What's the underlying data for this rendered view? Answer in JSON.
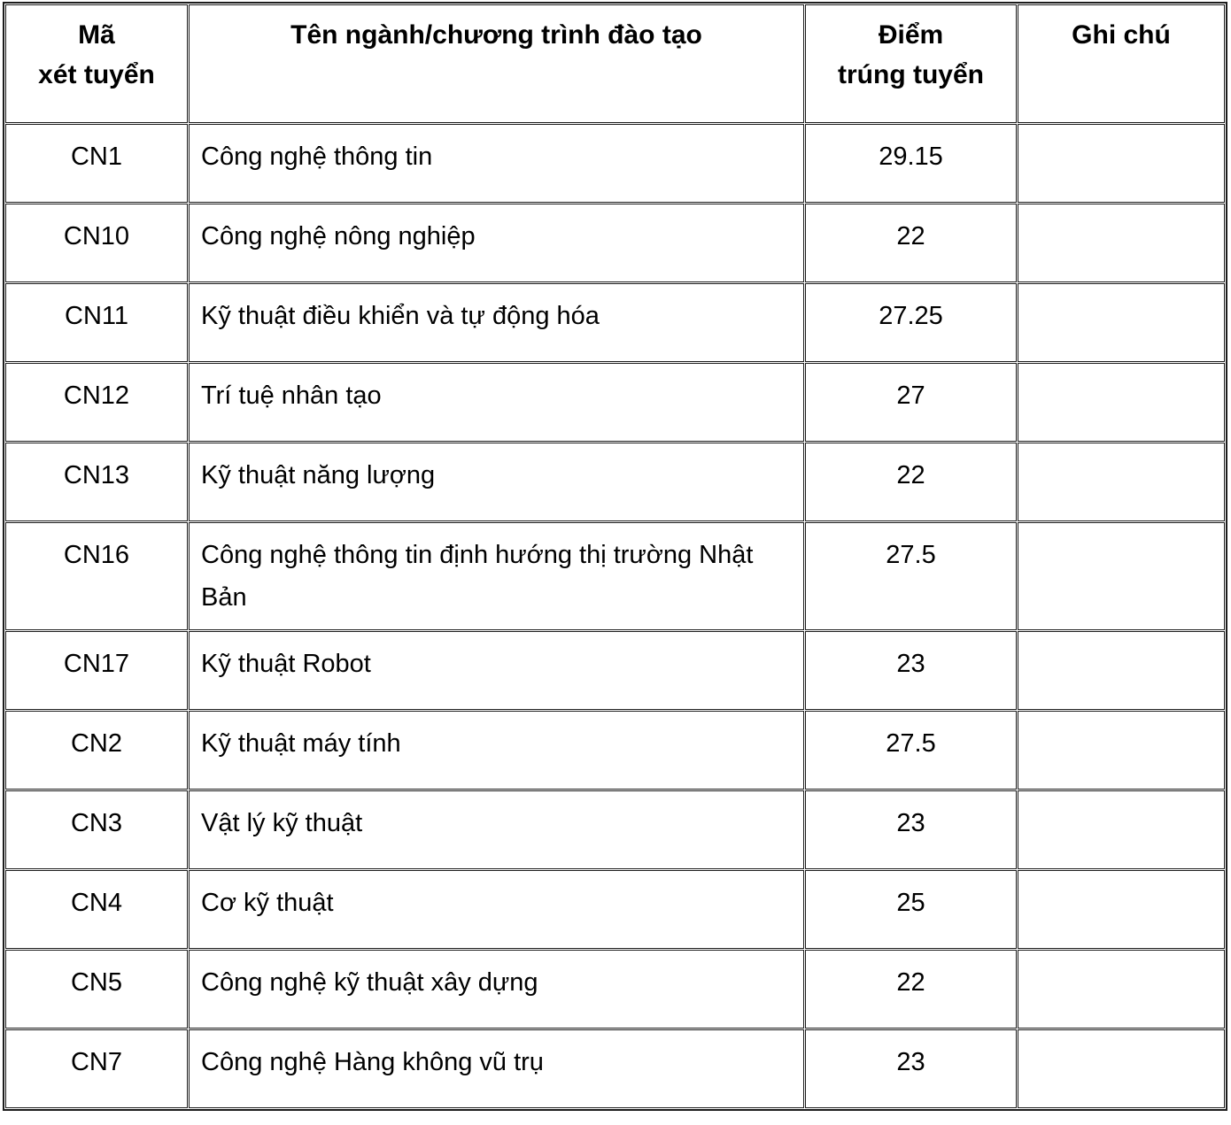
{
  "table": {
    "columns": [
      {
        "key": "code",
        "label": "Mã\nxét tuyển"
      },
      {
        "key": "name",
        "label": "Tên ngành/chương trình đào tạo"
      },
      {
        "key": "score",
        "label": "Điểm\ntrúng tuyển"
      },
      {
        "key": "note",
        "label": "Ghi chú"
      }
    ],
    "rows": [
      {
        "code": "CN1",
        "name": "Công nghệ thông tin",
        "score": "29.15",
        "note": ""
      },
      {
        "code": "CN10",
        "name": "Công nghệ nông nghiệp",
        "score": "22",
        "note": ""
      },
      {
        "code": "CN11",
        "name": "Kỹ thuật điều khiển và tự động hóa",
        "score": "27.25",
        "note": ""
      },
      {
        "code": "CN12",
        "name": "Trí tuệ nhân tạo",
        "score": "27",
        "note": ""
      },
      {
        "code": "CN13",
        "name": "Kỹ thuật năng lượng",
        "score": "22",
        "note": ""
      },
      {
        "code": "CN16",
        "name": "Công nghệ thông tin định hướng thị trường Nhật Bản",
        "score": "27.5",
        "note": ""
      },
      {
        "code": "CN17",
        "name": "Kỹ thuật Robot",
        "score": "23",
        "note": ""
      },
      {
        "code": "CN2",
        "name": "Kỹ thuật máy tính",
        "score": "27.5",
        "note": ""
      },
      {
        "code": "CN3",
        "name": "Vật lý kỹ thuật",
        "score": "23",
        "note": ""
      },
      {
        "code": "CN4",
        "name": "Cơ kỹ thuật",
        "score": "25",
        "note": ""
      },
      {
        "code": "CN5",
        "name": "Công nghệ kỹ thuật xây dựng",
        "score": "22",
        "note": ""
      },
      {
        "code": "CN7",
        "name": "Công nghệ Hàng không vũ trụ",
        "score": "23",
        "note": ""
      }
    ]
  },
  "colors": {
    "border": "#1c1c1c",
    "text": "#000000",
    "background": "#ffffff"
  }
}
